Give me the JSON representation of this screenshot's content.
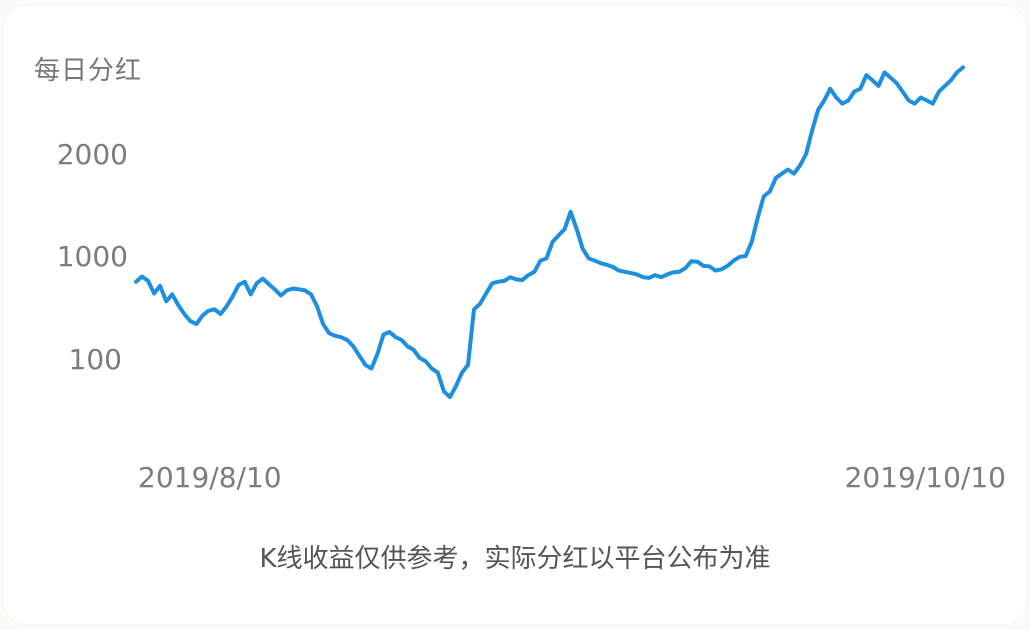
{
  "card": {
    "title": "每日分红",
    "footnote": "K线收益仅供参考，实际分红以平台公布为准"
  },
  "colors": {
    "line": "#1e8ee0",
    "text": "#777777",
    "background": "#ffffff"
  },
  "chart_data": {
    "type": "line",
    "title": "每日分红",
    "xlabel": "",
    "ylabel": "",
    "y_ticks": [
      "100",
      "1000",
      "2000"
    ],
    "x_ticks": [
      "2019/8/10",
      "2019/10/10"
    ],
    "x_range": [
      "2019/8/10",
      "2019/10/10"
    ],
    "grid": false,
    "legend": "none",
    "series": [
      {
        "values": [
          560,
          630,
          570,
          430,
          510,
          360,
          420,
          330,
          270,
          230,
          215,
          260,
          290,
          300,
          270,
          320,
          400,
          520,
          560,
          420,
          540,
          600,
          530,
          470,
          410,
          460,
          480,
          470,
          460,
          420,
          320,
          215,
          175,
          165,
          160,
          150,
          130,
          105,
          90,
          85,
          110,
          170,
          180,
          160,
          150,
          130,
          120,
          100,
          95,
          85,
          80,
          60,
          55,
          65,
          80,
          90,
          300,
          340,
          430,
          540,
          560,
          570,
          620,
          590,
          580,
          650,
          700,
          900,
          950,
          1100,
          1150,
          1200,
          1350,
          1200,
          1050,
          950,
          900,
          850,
          820,
          780,
          720,
          700,
          680,
          660,
          620,
          610,
          650,
          620,
          660,
          690,
          700,
          760,
          890,
          880,
          800,
          790,
          720,
          740,
          800,
          900,
          980,
          1000,
          1100,
          1300,
          1500,
          1550,
          1700,
          1750,
          1800,
          1750,
          1850,
          2000,
          2300,
          2600,
          2750,
          2950,
          2800,
          2700,
          2750,
          2900,
          2950,
          3200,
          3100,
          3000,
          3250,
          3150,
          3050,
          2900,
          2750,
          2700,
          2800,
          2750,
          2700,
          2900,
          3000,
          3100,
          3250,
          3350
        ]
      }
    ]
  }
}
